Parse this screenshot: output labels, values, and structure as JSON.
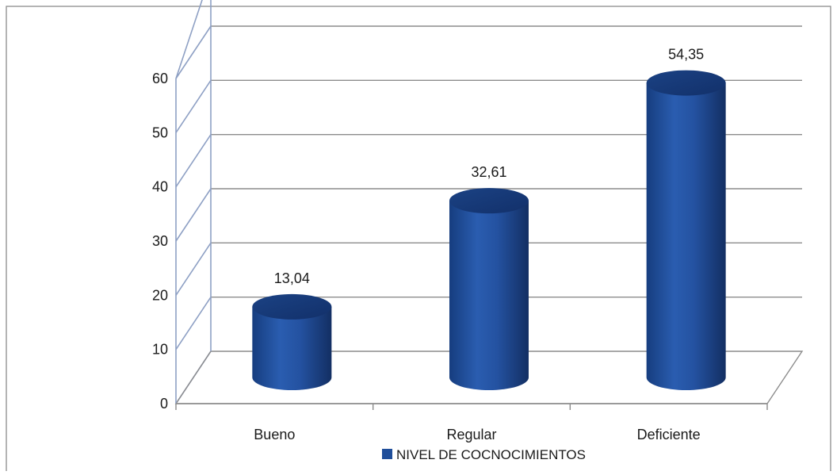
{
  "chart_data": {
    "type": "bar",
    "style": "3d-cylinder",
    "title": "",
    "xlabel": "",
    "ylabel": "",
    "categories": [
      "Bueno",
      "Regular",
      "Deficiente"
    ],
    "series": [
      {
        "name": "NIVEL DE COCNOCIMIENTOS",
        "values": [
          13.04,
          32.61,
          54.35
        ],
        "color": "#1f4e9a"
      }
    ],
    "data_labels": [
      "13,04",
      "32,61",
      "54,35"
    ],
    "ylim": [
      0,
      60
    ],
    "yticks": [
      0,
      10,
      20,
      30,
      40,
      50,
      60
    ],
    "grid": true,
    "legend_position": "bottom",
    "colors": {
      "bar": "#1f4e9a",
      "grid": "#8c8c8c",
      "axis": "#8ea0c4"
    }
  }
}
